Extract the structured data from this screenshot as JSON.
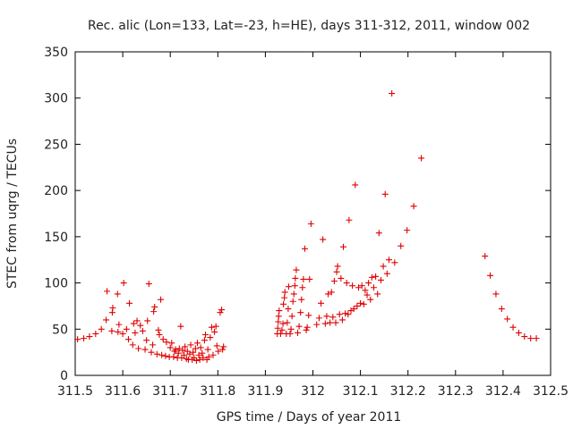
{
  "chart_data": {
    "type": "scatter",
    "title": "Rec. alic (Lon=133, Lat=-23, h=HE), days 311-312, 2011, window 002",
    "xlabel": "GPS time / Days of year 2011",
    "ylabel": "STEC from uqrg / TECUs",
    "xlim": [
      311.5,
      312.5
    ],
    "ylim": [
      0,
      350
    ],
    "xticks": [
      "311.5",
      "311.6",
      "311.7",
      "311.8",
      "311.9",
      "312",
      "312.1",
      "312.2",
      "312.3",
      "312.4",
      "312.5"
    ],
    "xtick_values": [
      311.5,
      311.6,
      311.7,
      311.8,
      311.9,
      312.0,
      312.1,
      312.2,
      312.3,
      312.4,
      312.5
    ],
    "yticks": [
      "0",
      "50",
      "100",
      "150",
      "200",
      "250",
      "300",
      "350"
    ],
    "ytick_values": [
      0,
      50,
      100,
      150,
      200,
      250,
      300,
      350
    ],
    "grid": false,
    "legend": "none",
    "marker": "plus",
    "color": "#e00000",
    "series": [
      {
        "points": [
          [
            311.505,
            39
          ],
          [
            311.518,
            40
          ],
          [
            311.53,
            42
          ],
          [
            311.543,
            45
          ],
          [
            311.555,
            50
          ],
          [
            311.565,
            60
          ],
          [
            311.567,
            91
          ],
          [
            311.577,
            48
          ],
          [
            311.578,
            68
          ],
          [
            311.579,
            73
          ],
          [
            311.589,
            88
          ],
          [
            311.59,
            47
          ],
          [
            311.592,
            55
          ],
          [
            311.6,
            45
          ],
          [
            311.602,
            100
          ],
          [
            311.608,
            50
          ],
          [
            311.612,
            39
          ],
          [
            311.614,
            78
          ],
          [
            311.621,
            33
          ],
          [
            311.623,
            56
          ],
          [
            311.626,
            46
          ],
          [
            311.63,
            59
          ],
          [
            311.633,
            29
          ],
          [
            311.637,
            54
          ],
          [
            311.642,
            48
          ],
          [
            311.647,
            28
          ],
          [
            311.65,
            38
          ],
          [
            311.652,
            59
          ],
          [
            311.655,
            99
          ],
          [
            311.66,
            25
          ],
          [
            311.663,
            33
          ],
          [
            311.665,
            69
          ],
          [
            311.667,
            74
          ],
          [
            311.672,
            23
          ],
          [
            311.675,
            49
          ],
          [
            311.677,
            44
          ],
          [
            311.68,
            82
          ],
          [
            311.682,
            22
          ],
          [
            311.685,
            39
          ],
          [
            311.69,
            21
          ],
          [
            311.692,
            36
          ],
          [
            311.698,
            20
          ],
          [
            311.7,
            30
          ],
          [
            311.703,
            35
          ],
          [
            311.707,
            20
          ],
          [
            311.709,
            26
          ],
          [
            311.711,
            28
          ],
          [
            311.715,
            19
          ],
          [
            311.717,
            24
          ],
          [
            311.719,
            29
          ],
          [
            311.722,
            53
          ],
          [
            311.724,
            19
          ],
          [
            311.726,
            27
          ],
          [
            311.729,
            22
          ],
          [
            311.731,
            31
          ],
          [
            311.734,
            18
          ],
          [
            311.736,
            26
          ],
          [
            311.738,
            17
          ],
          [
            311.741,
            23
          ],
          [
            311.743,
            33
          ],
          [
            311.746,
            17
          ],
          [
            311.748,
            25
          ],
          [
            311.75,
            19
          ],
          [
            311.753,
            29
          ],
          [
            311.755,
            16
          ],
          [
            311.757,
            35
          ],
          [
            311.76,
            22
          ],
          [
            311.762,
            17
          ],
          [
            311.764,
            30
          ],
          [
            311.767,
            24
          ],
          [
            311.769,
            19
          ],
          [
            311.772,
            38
          ],
          [
            311.774,
            44
          ],
          [
            311.777,
            17
          ],
          [
            311.779,
            28
          ],
          [
            311.781,
            20
          ],
          [
            311.784,
            41
          ],
          [
            311.787,
            52
          ],
          [
            311.79,
            22
          ],
          [
            311.793,
            47
          ],
          [
            311.796,
            53
          ],
          [
            311.798,
            32
          ],
          [
            311.801,
            26
          ],
          [
            311.805,
            68
          ],
          [
            311.808,
            71
          ],
          [
            311.81,
            28
          ],
          [
            311.812,
            31
          ],
          [
            311.925,
            45
          ],
          [
            311.926,
            51
          ],
          [
            311.927,
            58
          ],
          [
            311.928,
            64
          ],
          [
            311.929,
            70
          ],
          [
            311.932,
            45
          ],
          [
            311.935,
            49
          ],
          [
            311.937,
            56
          ],
          [
            311.938,
            77
          ],
          [
            311.94,
            84
          ],
          [
            311.941,
            90
          ],
          [
            311.944,
            45
          ],
          [
            311.946,
            57
          ],
          [
            311.948,
            72
          ],
          [
            311.949,
            96
          ],
          [
            311.952,
            45
          ],
          [
            311.954,
            50
          ],
          [
            311.956,
            64
          ],
          [
            311.958,
            80
          ],
          [
            311.96,
            88
          ],
          [
            311.962,
            97
          ],
          [
            311.963,
            105
          ],
          [
            311.965,
            114
          ],
          [
            311.968,
            46
          ],
          [
            311.971,
            53
          ],
          [
            311.974,
            68
          ],
          [
            311.976,
            82
          ],
          [
            311.978,
            95
          ],
          [
            311.98,
            104
          ],
          [
            311.983,
            137
          ],
          [
            311.986,
            49
          ],
          [
            311.988,
            52
          ],
          [
            311.991,
            65
          ],
          [
            311.993,
            104
          ],
          [
            311.996,
            164
          ],
          [
            312.008,
            55
          ],
          [
            312.013,
            62
          ],
          [
            312.017,
            78
          ],
          [
            312.021,
            147
          ],
          [
            312.026,
            56
          ],
          [
            312.029,
            64
          ],
          [
            312.032,
            88
          ],
          [
            312.036,
            57
          ],
          [
            312.039,
            90
          ],
          [
            312.042,
            63
          ],
          [
            312.045,
            102
          ],
          [
            312.048,
            57
          ],
          [
            312.05,
            112
          ],
          [
            312.052,
            118
          ],
          [
            312.056,
            66
          ],
          [
            312.059,
            105
          ],
          [
            312.062,
            60
          ],
          [
            312.064,
            139
          ],
          [
            312.068,
            67
          ],
          [
            312.071,
            100
          ],
          [
            312.074,
            66
          ],
          [
            312.076,
            168
          ],
          [
            312.08,
            70
          ],
          [
            312.083,
            97
          ],
          [
            312.086,
            72
          ],
          [
            312.089,
            206
          ],
          [
            312.093,
            75
          ],
          [
            312.096,
            95
          ],
          [
            312.1,
            78
          ],
          [
            312.103,
            97
          ],
          [
            312.107,
            77
          ],
          [
            312.11,
            92
          ],
          [
            312.114,
            87
          ],
          [
            312.117,
            100
          ],
          [
            312.121,
            82
          ],
          [
            312.124,
            106
          ],
          [
            312.128,
            95
          ],
          [
            312.132,
            107
          ],
          [
            312.136,
            88
          ],
          [
            312.139,
            154
          ],
          [
            312.143,
            103
          ],
          [
            312.148,
            118
          ],
          [
            312.152,
            196
          ],
          [
            312.156,
            110
          ],
          [
            312.16,
            125
          ],
          [
            312.166,
            305
          ],
          [
            312.172,
            122
          ],
          [
            312.185,
            140
          ],
          [
            312.198,
            157
          ],
          [
            312.212,
            183
          ],
          [
            312.228,
            235
          ],
          [
            312.362,
            129
          ],
          [
            312.373,
            108
          ],
          [
            312.385,
            88
          ],
          [
            312.397,
            72
          ],
          [
            312.409,
            61
          ],
          [
            312.421,
            52
          ],
          [
            312.433,
            46
          ],
          [
            312.445,
            42
          ],
          [
            312.458,
            40
          ],
          [
            312.47,
            40
          ]
        ]
      }
    ]
  }
}
